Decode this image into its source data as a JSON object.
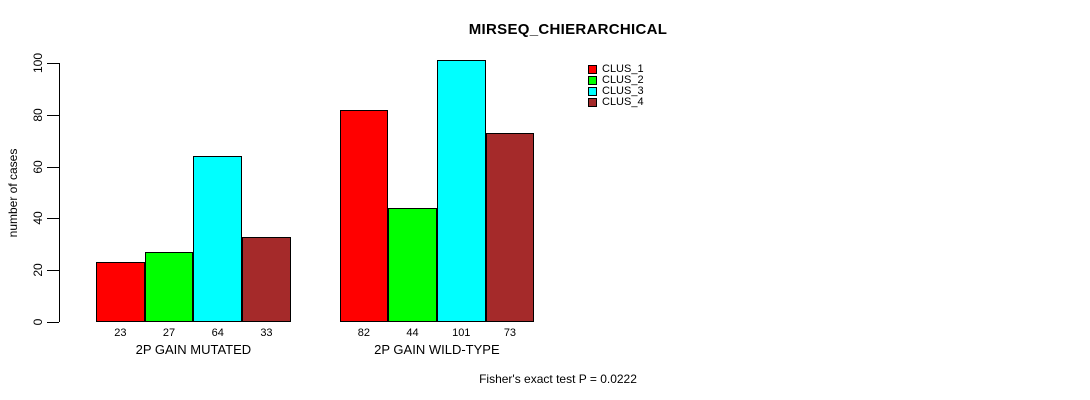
{
  "title": "MIRSEQ_CHIERARCHICAL",
  "annotation": "Fisher's exact test P = 0.0222",
  "chart_data": {
    "type": "bar",
    "categories": [
      "2P GAIN MUTATED",
      "2P GAIN WILD-TYPE"
    ],
    "series": [
      {
        "name": "CLUS_1",
        "color": "#FF0000",
        "values": [
          23,
          82
        ]
      },
      {
        "name": "CLUS_2",
        "color": "#00FF00",
        "values": [
          27,
          44
        ]
      },
      {
        "name": "CLUS_3",
        "color": "#00FFFF",
        "values": [
          64,
          101
        ]
      },
      {
        "name": "CLUS_4",
        "color": "#A52A2A",
        "values": [
          33,
          73
        ]
      }
    ],
    "ylabel": "number of cases",
    "yticks": [
      0,
      20,
      40,
      60,
      80,
      100
    ],
    "ylim": [
      0,
      100
    ],
    "bar_value_labels": true,
    "grid": false,
    "legend_position": "top-right"
  }
}
